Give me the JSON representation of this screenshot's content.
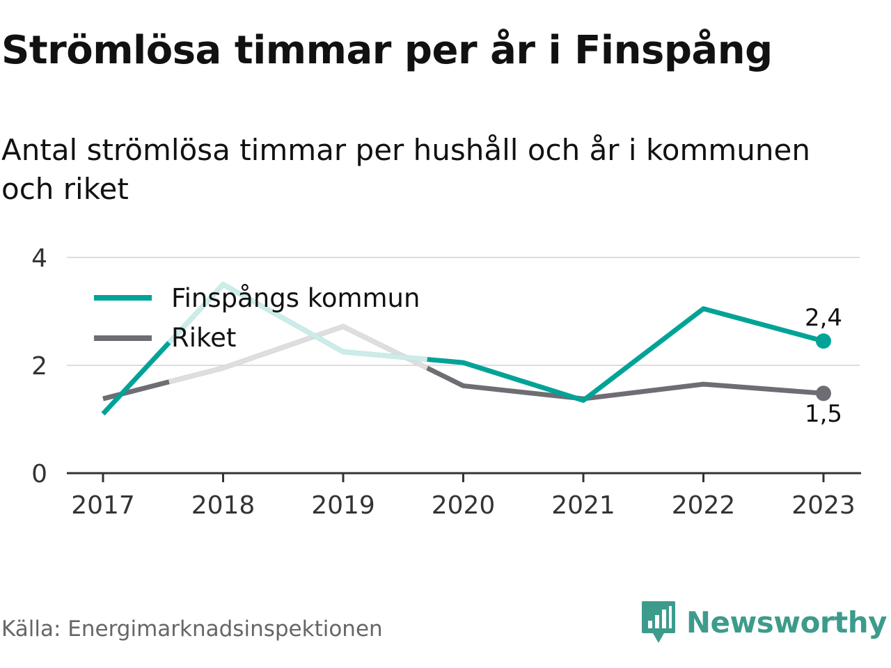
{
  "title": "Strömlösa timmar per år i Finspång",
  "subtitle": "Antal strömlösa timmar per hushåll och år i kommunen och riket",
  "source": "Källa: Energimarknadsinspektionen",
  "brand": {
    "name": "Newsworthy",
    "color": "#3d9b8c",
    "icon": "chat-bar-chart-icon"
  },
  "colors": {
    "finspang": "#00a396",
    "finspang_faded": "#cdebe8",
    "riket": "#6e6d74",
    "riket_faded": "#dedede",
    "grid": "#dddddd",
    "axis": "#333333"
  },
  "chart_data": {
    "type": "line",
    "x": [
      "2017",
      "2018",
      "2019",
      "2020",
      "2021",
      "2022",
      "2023"
    ],
    "ylim": [
      0,
      4
    ],
    "yticks": [
      "0",
      "2",
      "4"
    ],
    "grid": true,
    "legend_position": "top-left",
    "series": [
      {
        "name": "Finspångs kommun",
        "key": "finspang",
        "values": [
          1.1,
          3.5,
          2.25,
          2.05,
          1.35,
          3.05,
          2.45
        ]
      },
      {
        "name": "Riket",
        "key": "riket",
        "values": [
          1.38,
          1.95,
          2.72,
          1.62,
          1.38,
          1.65,
          1.48
        ]
      }
    ],
    "end_labels": {
      "finspang": "2,4",
      "riket": "1,5"
    },
    "faded_region": {
      "from": "2018",
      "to": "2019",
      "note": "partly hidden behind legend"
    }
  }
}
